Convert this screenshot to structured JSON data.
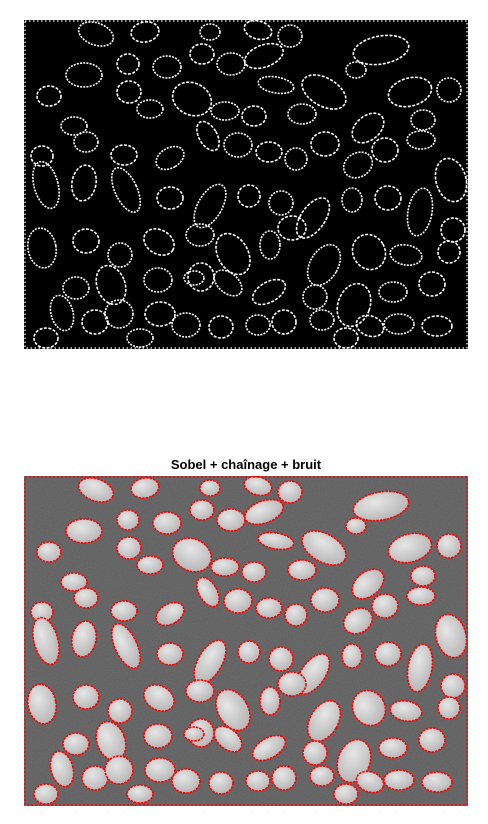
{
  "figure": {
    "top_panel": {
      "kind": "binary-edge-map",
      "background_color": "#000000",
      "edge_color": "#ffffff"
    },
    "bottom_panel": {
      "title": "Sobel + chaînage + bruit",
      "kind": "grayscale-image-with-contours",
      "background_color": "#5e5e5e",
      "object_color": "#c9c9c9",
      "contour_color": "#ff0000"
    }
  }
}
